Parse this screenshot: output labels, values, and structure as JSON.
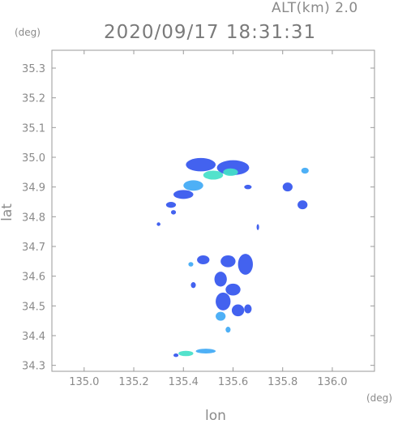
{
  "header": {
    "altitude_label": "ALT(km) 2.0",
    "datetime": "2020/09/17 18:31:31"
  },
  "chart_data": {
    "type": "heatmap",
    "title": "2020/09/17 18:31:31",
    "subtitle": "ALT(km) 2.0",
    "xlabel": "lon",
    "ylabel": "lat",
    "x_unit": "(deg)",
    "y_unit": "(deg)",
    "xlim": [
      134.87,
      136.17
    ],
    "ylim": [
      34.28,
      35.36
    ],
    "x_ticks": [
      "135.0",
      "135.2",
      "135.4",
      "135.6",
      "135.8",
      "136.0"
    ],
    "y_ticks": [
      "34.3",
      "34.4",
      "34.5",
      "34.6",
      "34.7",
      "34.8",
      "34.9",
      "35.0",
      "35.1",
      "35.2",
      "35.3"
    ],
    "grid": false,
    "colors": {
      "weak": "#3355ee",
      "moderate": "#3fa9f5",
      "strong": "#44e0c8",
      "axis": "#8a8a8a"
    },
    "echoes": [
      {
        "lon": 135.47,
        "lat": 34.975,
        "w": 0.12,
        "h": 0.045,
        "level": "weak"
      },
      {
        "lon": 135.6,
        "lat": 34.965,
        "w": 0.13,
        "h": 0.05,
        "level": "weak"
      },
      {
        "lon": 135.52,
        "lat": 34.94,
        "w": 0.08,
        "h": 0.03,
        "level": "strong"
      },
      {
        "lon": 135.59,
        "lat": 34.95,
        "w": 0.06,
        "h": 0.025,
        "level": "strong"
      },
      {
        "lon": 135.44,
        "lat": 34.905,
        "w": 0.08,
        "h": 0.035,
        "level": "moderate"
      },
      {
        "lon": 135.4,
        "lat": 34.875,
        "w": 0.08,
        "h": 0.03,
        "level": "weak"
      },
      {
        "lon": 135.35,
        "lat": 34.84,
        "w": 0.04,
        "h": 0.02,
        "level": "weak"
      },
      {
        "lon": 135.36,
        "lat": 34.815,
        "w": 0.02,
        "h": 0.015,
        "level": "weak"
      },
      {
        "lon": 135.89,
        "lat": 34.955,
        "w": 0.03,
        "h": 0.02,
        "level": "moderate"
      },
      {
        "lon": 135.82,
        "lat": 34.9,
        "w": 0.04,
        "h": 0.03,
        "level": "weak"
      },
      {
        "lon": 135.88,
        "lat": 34.84,
        "w": 0.04,
        "h": 0.03,
        "level": "weak"
      },
      {
        "lon": 135.66,
        "lat": 34.9,
        "w": 0.03,
        "h": 0.015,
        "level": "weak"
      },
      {
        "lon": 135.48,
        "lat": 34.655,
        "w": 0.05,
        "h": 0.03,
        "level": "weak"
      },
      {
        "lon": 135.58,
        "lat": 34.65,
        "w": 0.06,
        "h": 0.04,
        "level": "weak"
      },
      {
        "lon": 135.65,
        "lat": 34.64,
        "w": 0.06,
        "h": 0.07,
        "level": "weak"
      },
      {
        "lon": 135.55,
        "lat": 34.59,
        "w": 0.05,
        "h": 0.05,
        "level": "weak"
      },
      {
        "lon": 135.6,
        "lat": 34.555,
        "w": 0.06,
        "h": 0.04,
        "level": "weak"
      },
      {
        "lon": 135.56,
        "lat": 34.515,
        "w": 0.06,
        "h": 0.06,
        "level": "weak"
      },
      {
        "lon": 135.62,
        "lat": 34.485,
        "w": 0.05,
        "h": 0.04,
        "level": "weak"
      },
      {
        "lon": 135.55,
        "lat": 34.465,
        "w": 0.04,
        "h": 0.03,
        "level": "moderate"
      },
      {
        "lon": 135.66,
        "lat": 34.49,
        "w": 0.03,
        "h": 0.03,
        "level": "weak"
      },
      {
        "lon": 135.44,
        "lat": 34.57,
        "w": 0.02,
        "h": 0.02,
        "level": "weak"
      },
      {
        "lon": 135.43,
        "lat": 34.64,
        "w": 0.02,
        "h": 0.015,
        "level": "moderate"
      },
      {
        "lon": 135.58,
        "lat": 34.42,
        "w": 0.02,
        "h": 0.02,
        "level": "moderate"
      },
      {
        "lon": 135.41,
        "lat": 34.34,
        "w": 0.06,
        "h": 0.018,
        "level": "strong"
      },
      {
        "lon": 135.49,
        "lat": 34.348,
        "w": 0.08,
        "h": 0.016,
        "level": "moderate"
      },
      {
        "lon": 135.37,
        "lat": 34.334,
        "w": 0.02,
        "h": 0.012,
        "level": "weak"
      },
      {
        "lon": 135.3,
        "lat": 34.775,
        "w": 0.015,
        "h": 0.012,
        "level": "weak"
      },
      {
        "lon": 135.7,
        "lat": 34.765,
        "w": 0.01,
        "h": 0.02,
        "level": "weak"
      }
    ]
  }
}
